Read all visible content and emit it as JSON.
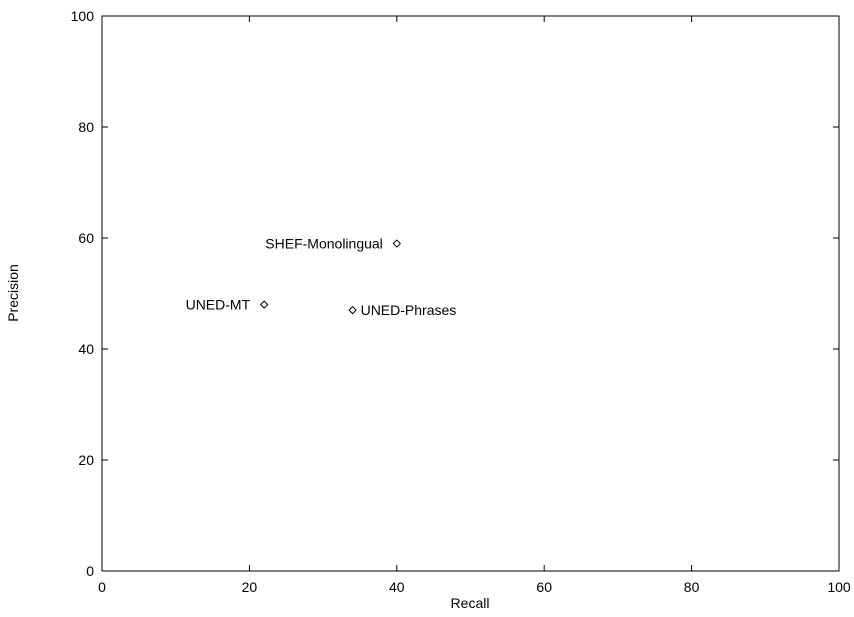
{
  "chart_data": {
    "type": "scatter",
    "title": "",
    "xlabel": "Recall",
    "ylabel": "Precision",
    "xlim": [
      0,
      100
    ],
    "ylim": [
      0,
      100
    ],
    "xticks": [
      0,
      20,
      40,
      60,
      80,
      100
    ],
    "yticks": [
      0,
      20,
      40,
      60,
      80,
      100
    ],
    "grid": false,
    "legend": "none",
    "marker": "diamond",
    "points": [
      {
        "label": "SHEF-Monolingual",
        "x": 40,
        "y": 59,
        "label_side": "left"
      },
      {
        "label": "UNED-MT",
        "x": 22,
        "y": 48,
        "label_side": "left"
      },
      {
        "label": "UNED-Phrases",
        "x": 34,
        "y": 47,
        "label_side": "right"
      }
    ]
  }
}
